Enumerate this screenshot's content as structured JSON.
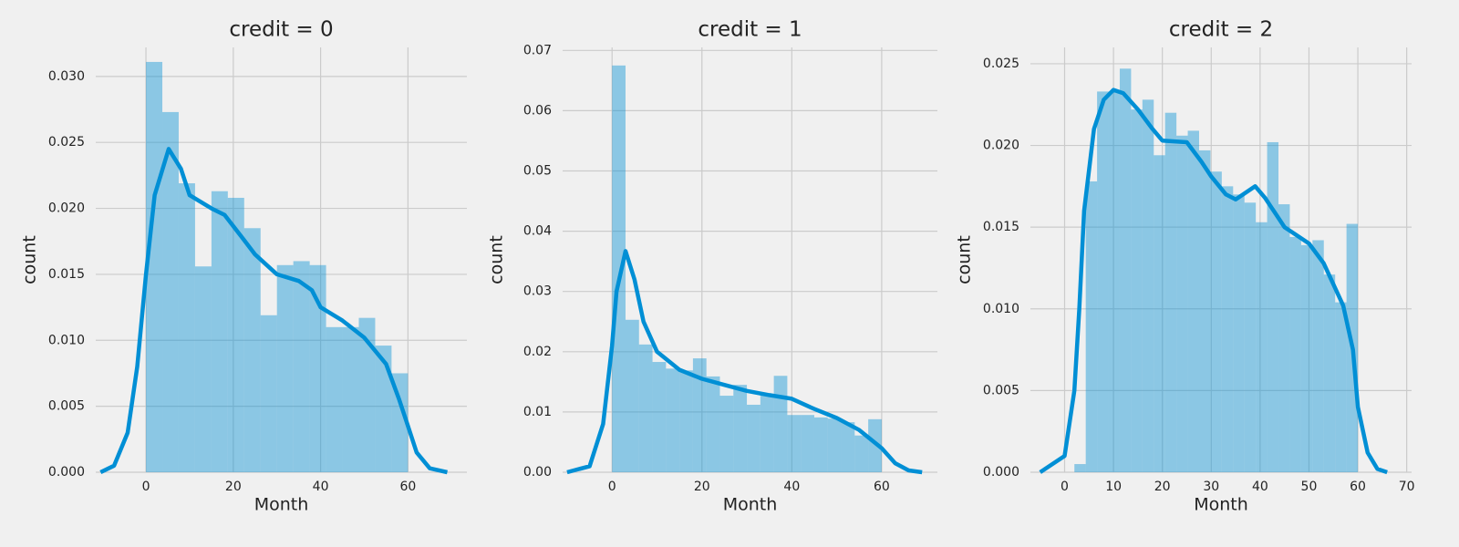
{
  "chart_data": [
    {
      "type": "histogram",
      "title": "credit = 0",
      "xlabel": "Month",
      "ylabel": "count",
      "color": "#008fd5",
      "grid": true,
      "bins": [
        0,
        3.75,
        7.5,
        11.25,
        15,
        18.75,
        22.5,
        26.25,
        30,
        33.75,
        37.5,
        41.25,
        45,
        48.75,
        52.5,
        56.25,
        60
      ],
      "values": [
        0.0311,
        0.0273,
        0.0219,
        0.0156,
        0.0213,
        0.0208,
        0.0185,
        0.0119,
        0.0157,
        0.016,
        0.0157,
        0.011,
        0.011,
        0.0117,
        0.0096,
        0.0075
      ],
      "kde": {
        "x": [
          -10.4,
          -7.3,
          -4.2,
          -2,
          0,
          2,
          5.2,
          8,
          10,
          15,
          18,
          22,
          25,
          30,
          35,
          38,
          40,
          45,
          50,
          55,
          58,
          60,
          62,
          65,
          69
        ],
        "values": [
          0,
          0.0005,
          0.003,
          0.008,
          0.015,
          0.021,
          0.0245,
          0.023,
          0.021,
          0.02,
          0.0195,
          0.0178,
          0.0165,
          0.015,
          0.0145,
          0.0138,
          0.0125,
          0.0115,
          0.0102,
          0.0082,
          0.0055,
          0.0035,
          0.0015,
          0.0003,
          0
        ]
      },
      "xlim": [
        -11.5,
        73.5
      ],
      "ylim": [
        0,
        0.0322
      ],
      "xticks": [
        0,
        20,
        40,
        60
      ],
      "yticks": [
        {
          "value": 0,
          "label": "0.000"
        },
        {
          "value": 0.005,
          "label": "0.005"
        },
        {
          "value": 0.01,
          "label": "0.010"
        },
        {
          "value": 0.015,
          "label": "0.015"
        },
        {
          "value": 0.02,
          "label": "0.020"
        },
        {
          "value": 0.025,
          "label": "0.025"
        },
        {
          "value": 0.03,
          "label": "0.030"
        }
      ]
    },
    {
      "type": "histogram",
      "title": "credit = 1",
      "xlabel": "Month",
      "ylabel": "count",
      "color": "#008fd5",
      "grid": true,
      "bins": [
        0,
        3,
        6,
        9,
        12,
        15,
        18,
        21,
        24,
        27,
        30,
        33,
        36,
        39,
        42,
        45,
        48,
        51,
        54,
        57,
        60
      ],
      "values": [
        0.0675,
        0.0253,
        0.0212,
        0.0183,
        0.0172,
        0.0169,
        0.0189,
        0.0159,
        0.0127,
        0.0145,
        0.0112,
        0.013,
        0.016,
        0.0095,
        0.0095,
        0.0091,
        0.0089,
        0.0083,
        0.0061,
        0.0088
      ],
      "kde": {
        "x": [
          -10,
          -5,
          -2,
          0,
          1,
          3,
          5,
          7,
          10,
          15,
          20,
          25,
          30,
          35,
          40,
          45,
          50,
          55,
          60,
          63,
          66,
          69
        ],
        "values": [
          0,
          0.001,
          0.008,
          0.021,
          0.03,
          0.0367,
          0.032,
          0.025,
          0.02,
          0.017,
          0.0155,
          0.0145,
          0.0135,
          0.0128,
          0.0122,
          0.0105,
          0.009,
          0.007,
          0.004,
          0.0015,
          0.0003,
          0
        ]
      },
      "xlim": [
        -11,
        72.4
      ],
      "ylim": [
        0,
        0.0705
      ],
      "xticks": [
        0,
        20,
        40,
        60
      ],
      "yticks": [
        {
          "value": 0,
          "label": "0.00"
        },
        {
          "value": 0.01,
          "label": "0.01"
        },
        {
          "value": 0.02,
          "label": "0.02"
        },
        {
          "value": 0.03,
          "label": "0.03"
        },
        {
          "value": 0.04,
          "label": "0.04"
        },
        {
          "value": 0.05,
          "label": "0.05"
        },
        {
          "value": 0.06,
          "label": "0.06"
        },
        {
          "value": 0.07,
          "label": "0.07"
        }
      ]
    },
    {
      "type": "histogram",
      "title": "credit = 2",
      "xlabel": "Month",
      "ylabel": "count",
      "color": "#008fd5",
      "grid": true,
      "bins": [
        2,
        4.32,
        6.64,
        8.96,
        11.28,
        13.6,
        15.92,
        18.24,
        20.56,
        22.88,
        25.2,
        27.52,
        29.84,
        32.16,
        34.48,
        36.8,
        39.12,
        41.44,
        43.76,
        46.08,
        48.4,
        50.72,
        53.04,
        55.36,
        57.68,
        60
      ],
      "values": [
        0.0005,
        0.0178,
        0.0233,
        0.0233,
        0.0247,
        0.0222,
        0.0228,
        0.0194,
        0.022,
        0.0206,
        0.0209,
        0.0197,
        0.0184,
        0.0175,
        0.017,
        0.0165,
        0.0153,
        0.0202,
        0.0164,
        0.0144,
        0.0139,
        0.0142,
        0.0121,
        0.0104,
        0.0152
      ],
      "kde": {
        "x": [
          -5,
          0,
          2,
          3,
          4,
          6,
          8,
          10,
          12,
          15,
          18,
          20,
          25,
          28,
          30,
          33,
          35,
          37,
          39,
          41,
          45,
          50,
          53,
          55,
          57,
          59,
          60,
          62,
          64,
          66
        ],
        "values": [
          0,
          0.001,
          0.005,
          0.01,
          0.016,
          0.021,
          0.0228,
          0.0234,
          0.0232,
          0.0222,
          0.021,
          0.0203,
          0.0202,
          0.019,
          0.0181,
          0.017,
          0.0167,
          0.0171,
          0.0175,
          0.0168,
          0.015,
          0.014,
          0.0128,
          0.0115,
          0.0102,
          0.0075,
          0.004,
          0.0012,
          0.0002,
          0
        ]
      },
      "xlim": [
        -7,
        71
      ],
      "ylim": [
        0,
        0.026
      ],
      "xticks": [
        0,
        10,
        20,
        30,
        40,
        50,
        60,
        70
      ],
      "yticks": [
        {
          "value": 0,
          "label": "0.000"
        },
        {
          "value": 0.005,
          "label": "0.005"
        },
        {
          "value": 0.01,
          "label": "0.010"
        },
        {
          "value": 0.015,
          "label": "0.015"
        },
        {
          "value": 0.02,
          "label": "0.020"
        },
        {
          "value": 0.025,
          "label": "0.025"
        }
      ]
    }
  ]
}
